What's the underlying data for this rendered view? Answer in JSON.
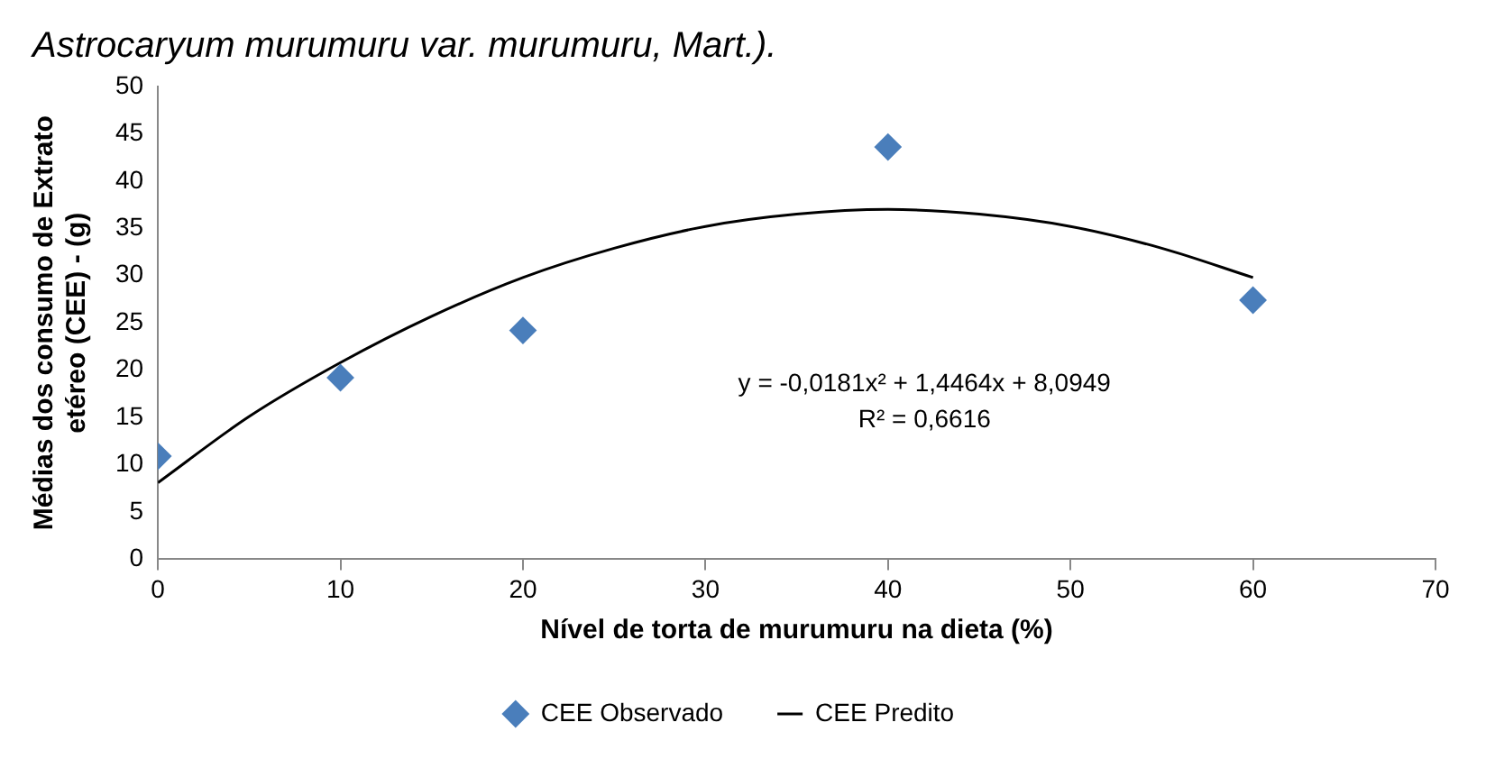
{
  "chart_data": {
    "type": "scatter",
    "xlabel": "Nível de torta de murumuru na dieta (%)",
    "ylabel": "Médias dos consumo de Extrato\netéreo (CEE) - (g)",
    "annotations": [
      "Astrocaryum murumuru var. murumuru, Mart.).",
      "y = -0,0181x² + 1,4464x + 8,0949",
      "R² = 0,6616"
    ],
    "series": [
      {
        "name": "CEE Observado",
        "color": "#4a7ebb",
        "marker": "diamond",
        "x": [
          0,
          10,
          20,
          40,
          60
        ],
        "values": [
          10.9,
          19.2,
          24.2,
          43.6,
          27.4
        ]
      },
      {
        "name": "CEE Predito",
        "type": "line",
        "color": "#000000",
        "marker": "none",
        "x": [
          0,
          5,
          10,
          15,
          20,
          25,
          30,
          35,
          40,
          45,
          50,
          55,
          60
        ],
        "values": [
          8.1,
          15.1,
          20.8,
          25.7,
          29.8,
          32.9,
          35.2,
          36.5,
          37.0,
          36.5,
          35.2,
          32.9,
          29.8
        ]
      }
    ],
    "xlim": [
      0,
      70
    ],
    "xticks": [
      0,
      10,
      20,
      30,
      40,
      50,
      60,
      70
    ],
    "ylim": [
      0,
      50
    ],
    "yticks": [
      0,
      5,
      10,
      15,
      20,
      25,
      30,
      35,
      40,
      45,
      50
    ],
    "grid": false,
    "legend": "bottom"
  }
}
